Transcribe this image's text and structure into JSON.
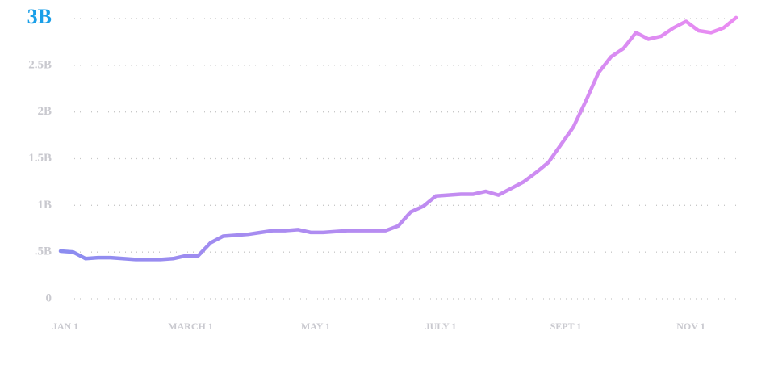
{
  "chart_data": {
    "type": "line",
    "categories": [
      "JAN 1",
      null,
      null,
      null,
      null,
      null,
      null,
      null,
      null,
      null,
      "MARCH 1",
      null,
      null,
      null,
      null,
      null,
      null,
      null,
      null,
      null,
      "MAY 1",
      null,
      null,
      null,
      null,
      null,
      null,
      null,
      null,
      null,
      "JULY 1",
      null,
      null,
      null,
      null,
      null,
      null,
      null,
      null,
      null,
      "SEPT 1",
      null,
      null,
      null,
      null,
      null,
      null,
      null,
      null,
      null,
      "NOV 1",
      null,
      null,
      null,
      null
    ],
    "series": [
      {
        "color": "#8b8cf0",
        "color_end": "#ea8cf2",
        "values": [
          0.51,
          0.5,
          0.43,
          0.44,
          0.44,
          0.43,
          0.42,
          0.42,
          0.42,
          0.43,
          0.46,
          0.46,
          0.6,
          0.67,
          0.68,
          0.69,
          0.71,
          0.73,
          0.73,
          0.74,
          0.71,
          0.71,
          0.72,
          0.73,
          0.73,
          0.73,
          0.73,
          0.78,
          0.93,
          0.99,
          1.1,
          1.11,
          1.12,
          1.12,
          1.15,
          1.11,
          1.18,
          1.25,
          1.35,
          1.46,
          1.65,
          1.84,
          2.12,
          2.42,
          2.59,
          2.68,
          2.85,
          2.78,
          2.81,
          2.9,
          2.97,
          2.87,
          2.85,
          2.9,
          3.01
        ]
      }
    ],
    "ylim": [
      0,
      3
    ],
    "yticks": [
      0,
      {
        "value": 0.5,
        "label": ".5B"
      },
      {
        "value": 1,
        "label": "1B"
      },
      {
        "value": 1.5,
        "label": "1.5B"
      },
      {
        "value": 2,
        "label": "2B"
      },
      {
        "value": 2.5,
        "label": "2.5B"
      },
      {
        "value": 3,
        "label": "3B"
      }
    ],
    "grid": true
  }
}
